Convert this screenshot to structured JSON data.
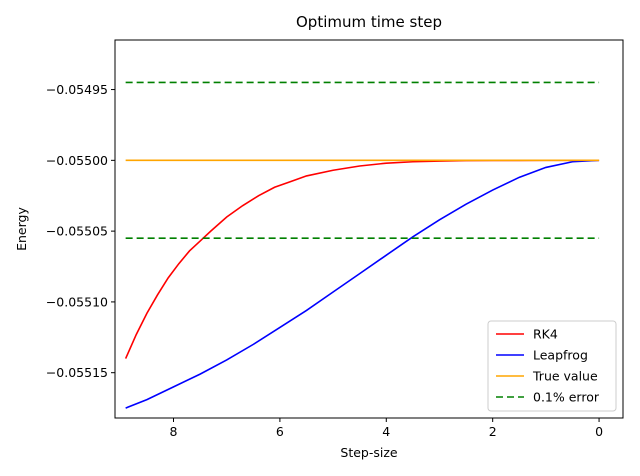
{
  "chart_data": {
    "type": "line",
    "title": "Optimum time step",
    "xlabel": "Step-size",
    "ylabel": "Energy",
    "xlim": [
      9.1,
      -0.45
    ],
    "ylim": [
      -0.055182,
      -0.054915
    ],
    "x_inverted": true,
    "xticks": [
      8,
      6,
      4,
      2,
      0
    ],
    "xtick_labels": [
      "8",
      "6",
      "4",
      "2",
      "0"
    ],
    "yticks": [
      -0.05495,
      -0.055,
      -0.05505,
      -0.0551,
      -0.05515
    ],
    "ytick_labels": [
      "−0.05495",
      "−0.05500",
      "−0.05505",
      "−0.05510",
      "−0.05515"
    ],
    "grid": false,
    "legend_position": "lower-right",
    "series": [
      {
        "name": "RK4",
        "color": "#ff0000",
        "style": "solid",
        "x": [
          8.9,
          8.7,
          8.5,
          8.3,
          8.1,
          7.9,
          7.7,
          7.5,
          7.3,
          7.0,
          6.7,
          6.4,
          6.1,
          5.8,
          5.5,
          5.0,
          4.5,
          4.0,
          3.5,
          3.0,
          2.5,
          2.0,
          1.5,
          1.0,
          0.5,
          0.0
        ],
        "y": [
          -0.05514,
          -0.055123,
          -0.055108,
          -0.055095,
          -0.055083,
          -0.055073,
          -0.055064,
          -0.055057,
          -0.05505,
          -0.05504,
          -0.055032,
          -0.055025,
          -0.055019,
          -0.055015,
          -0.055011,
          -0.055007,
          -0.055004,
          -0.055002,
          -0.055001,
          -0.0550005,
          -0.0550002,
          -0.0550001,
          -0.05500005,
          -0.05500002,
          -0.05500001,
          -0.055
        ]
      },
      {
        "name": "Leapfrog",
        "color": "#0000ff",
        "style": "solid",
        "x": [
          8.9,
          8.5,
          8.0,
          7.5,
          7.0,
          6.5,
          6.0,
          5.5,
          5.0,
          4.5,
          4.0,
          3.5,
          3.0,
          2.5,
          2.0,
          1.5,
          1.0,
          0.5,
          0.0
        ],
        "y": [
          -0.055175,
          -0.055169,
          -0.05516,
          -0.055151,
          -0.055141,
          -0.05513,
          -0.055118,
          -0.055106,
          -0.055093,
          -0.05508,
          -0.055067,
          -0.055054,
          -0.055042,
          -0.055031,
          -0.055021,
          -0.055012,
          -0.055005,
          -0.055001,
          -0.055
        ]
      },
      {
        "name": "True value",
        "color": "#ffa500",
        "style": "solid",
        "x": [
          8.9,
          0.0
        ],
        "y": [
          -0.055,
          -0.055
        ]
      },
      {
        "name": "0.1% error",
        "color": "#008000",
        "style": "dashed",
        "x": [
          8.9,
          0.0
        ],
        "y": [
          -0.054945,
          -0.054945
        ]
      },
      {
        "name": "",
        "color": "#008000",
        "style": "dashed",
        "x": [
          8.9,
          0.0
        ],
        "y": [
          -0.055055,
          -0.055055
        ]
      }
    ]
  }
}
